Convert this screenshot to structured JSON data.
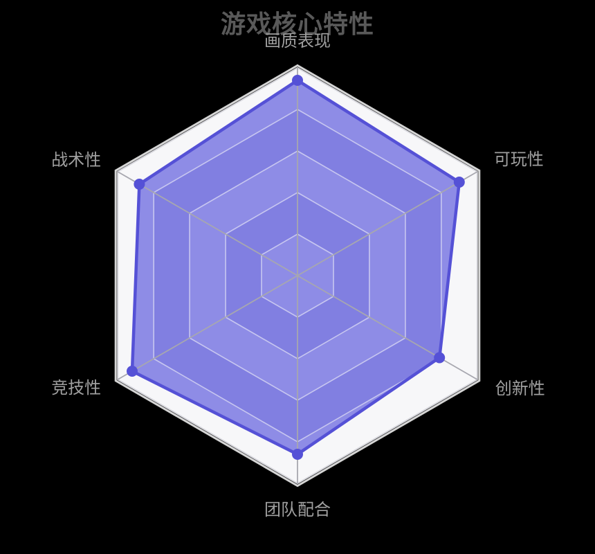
{
  "title": {
    "text": "游戏核心特性"
  },
  "chart_data": {
    "type": "radar",
    "indicators": [
      {
        "name": "画质表现",
        "max": 100
      },
      {
        "name": "可玩性",
        "max": 100
      },
      {
        "name": "创新性",
        "max": 100
      },
      {
        "name": "团队配合",
        "max": 100
      },
      {
        "name": "竞技性",
        "max": 100
      },
      {
        "name": "战术性",
        "max": 100
      }
    ],
    "series": [
      {
        "name": "游戏核心特性",
        "values": [
          94,
          90,
          79,
          86,
          92,
          88
        ]
      }
    ],
    "levels": 5,
    "axis_range": [
      0,
      100
    ],
    "grid": true,
    "legend_position": "none"
  },
  "colors": {
    "background": "#000000",
    "title": "#595959",
    "axis_label": "#a0a0a0",
    "band_light": "#f7f7f9",
    "band_dark": "#d7d7ed",
    "ring_line": "#dcdce2",
    "outer_ring_line": "#d9d9df",
    "outer_halo": "rgba(250,250,250,0.85)",
    "inner_ring_overlay": "rgba(255,255,255,0.55)",
    "axis_line": "#a7a7af",
    "series_line": "#5551d6",
    "series_fill": "rgba(72,68,216,0.60)"
  }
}
